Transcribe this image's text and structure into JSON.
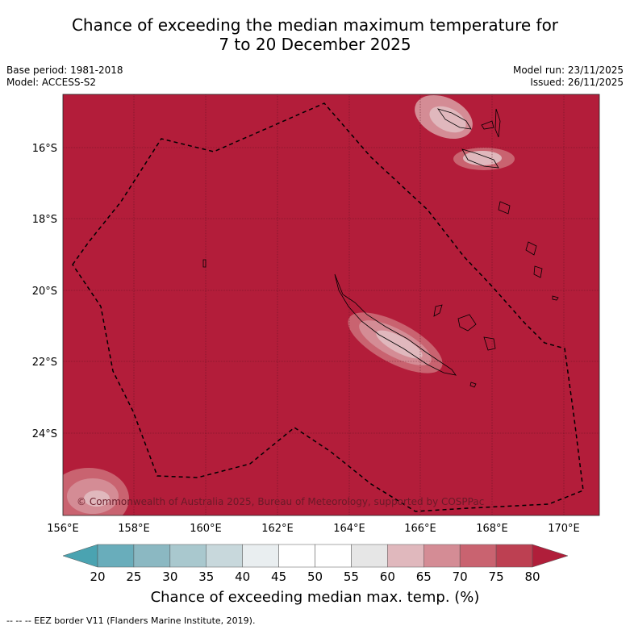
{
  "title_line1": "Chance of exceeding the median maximum temperature for",
  "title_line2": "7 to 20 December 2025",
  "base_period": "Base period: 1981-2018",
  "model": "Model: ACCESS-S2",
  "model_run": "Model run: 23/11/2025",
  "issued": "Issued: 26/11/2025",
  "lat_labels": [
    "16°S",
    "18°S",
    "20°S",
    "22°S",
    "24°S"
  ],
  "lon_labels": [
    "156°E",
    "158°E",
    "160°E",
    "162°E",
    "164°E",
    "166°E",
    "168°E",
    "170°E"
  ],
  "copyright": "© Commonwealth of Australia 2025, Bureau of Meteorology, supported by COSPPac",
  "colorbar": {
    "ticks": [
      "20",
      "25",
      "30",
      "35",
      "40",
      "45",
      "50",
      "55",
      "60",
      "65",
      "70",
      "75",
      "80"
    ],
    "colors": {
      "below20": "#4aa3b1",
      "20_25": "#69adbb",
      "25_30": "#8bb8c2",
      "30_35": "#a9c8ce",
      "35_40": "#c8d8dc",
      "40_45": "#e9eef0",
      "45_50": "#ffffff",
      "50_55": "#ffffff",
      "55_60": "#e6e6e6",
      "60_65": "#e0b8bd",
      "65_70": "#d48c95",
      "70_75": "#c96370",
      "75_80": "#bd4052",
      "above80": "#b01e3a"
    },
    "title": "Chance of exceeding median max. temp. (%)"
  },
  "map_background_color": "#b31d3a",
  "footer": "--  --  -- EEZ border V11 (Flanders Marine Institute, 2019)."
}
